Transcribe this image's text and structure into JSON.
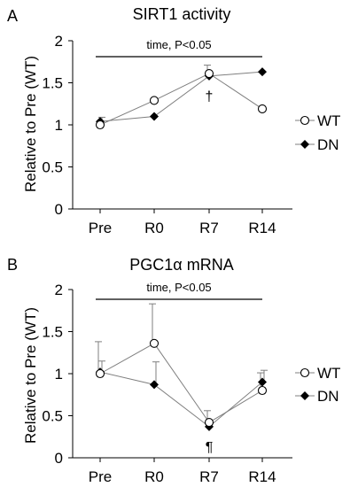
{
  "chart_data": [
    {
      "type": "line",
      "panel_label": "A",
      "title": "SIRT1 activity",
      "xlabel": "",
      "ylabel": "Relative to Pre (WT)",
      "categories": [
        "Pre",
        "R0",
        "R7",
        "R14"
      ],
      "ylim": [
        0,
        2
      ],
      "yticks": [
        "0",
        "0.5",
        "1",
        "1.5",
        "2"
      ],
      "annotation": "time, P<0.05",
      "markers": [
        {
          "text": "†",
          "category": "R7"
        }
      ],
      "legend_position": "right",
      "series": [
        {
          "name": "WT",
          "marker": "open-circle",
          "values": [
            1.0,
            1.29,
            1.61,
            1.19
          ],
          "err_up": [
            0.0,
            0.0,
            0.1,
            0.0
          ],
          "err_down": [
            0.0,
            0.0,
            0.0,
            0.0
          ]
        },
        {
          "name": "DN",
          "marker": "filled-diamond",
          "values": [
            1.04,
            1.1,
            1.58,
            1.63
          ],
          "err_up": [
            0.05,
            0.0,
            0.0,
            0.0
          ],
          "err_down": [
            0.0,
            0.0,
            0.0,
            0.0
          ]
        }
      ]
    },
    {
      "type": "line",
      "panel_label": "B",
      "title": "PGC1α mRNA",
      "xlabel": "",
      "ylabel": "Relative to Pre (WT)",
      "categories": [
        "Pre",
        "R0",
        "R7",
        "R14"
      ],
      "ylim": [
        0,
        2
      ],
      "yticks": [
        "0",
        "0.5",
        "1",
        "1.5",
        "2"
      ],
      "annotation": "time, P<0.05",
      "markers": [
        {
          "text": "¶",
          "category": "R7"
        }
      ],
      "legend_position": "right",
      "series": [
        {
          "name": "WT",
          "marker": "open-circle",
          "values": [
            1.0,
            1.36,
            0.42,
            0.8
          ],
          "err_up": [
            0.38,
            0.47,
            0.14,
            0.21
          ],
          "err_down": [
            0.0,
            0.0,
            0.0,
            0.0
          ]
        },
        {
          "name": "DN",
          "marker": "filled-diamond",
          "values": [
            1.02,
            0.87,
            0.37,
            0.9
          ],
          "err_up": [
            0.13,
            0.27,
            0.05,
            0.14
          ],
          "err_down": [
            0.0,
            0.0,
            0.0,
            0.0
          ]
        }
      ]
    }
  ]
}
